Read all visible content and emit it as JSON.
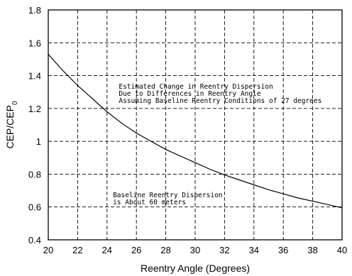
{
  "chart_data": {
    "type": "line",
    "xlabel": "Reentry Angle (Degrees)",
    "ylabel_main": "CEP/CEP",
    "ylabel_sub": "0",
    "xlim": [
      20,
      40
    ],
    "ylim": [
      0.4,
      1.8
    ],
    "grid": true,
    "xticks": [
      "20",
      "22",
      "24",
      "26",
      "28",
      "30",
      "32",
      "34",
      "36",
      "38",
      "40"
    ],
    "yticks": [
      "0.4",
      "0.6",
      "0.8",
      "1",
      "1.2",
      "1.4",
      "1.6",
      "1.8"
    ],
    "series": [
      {
        "x": [
          20,
          21,
          22,
          23,
          24,
          25,
          26,
          27,
          28,
          29,
          30,
          31,
          32,
          33,
          34,
          35,
          36,
          37,
          38,
          39,
          40
        ],
        "y": [
          1.53,
          1.43,
          1.34,
          1.26,
          1.18,
          1.11,
          1.05,
          1.0,
          0.95,
          0.91,
          0.87,
          0.83,
          0.795,
          0.765,
          0.735,
          0.705,
          0.68,
          0.655,
          0.635,
          0.615,
          0.595
        ]
      }
    ],
    "annotations": [
      {
        "lines": [
          "Estimated Change in Reentry Dispersion",
          "Due to Differences in Reentry Angle",
          "Assuming Baseline Reentry Conditions of 27 degrees"
        ],
        "x": 24.8,
        "y": 1.32
      },
      {
        "lines": [
          "Baseline Reentry Dispersion",
          "is About 60 meters"
        ],
        "x": 24.4,
        "y": 0.66
      }
    ]
  }
}
